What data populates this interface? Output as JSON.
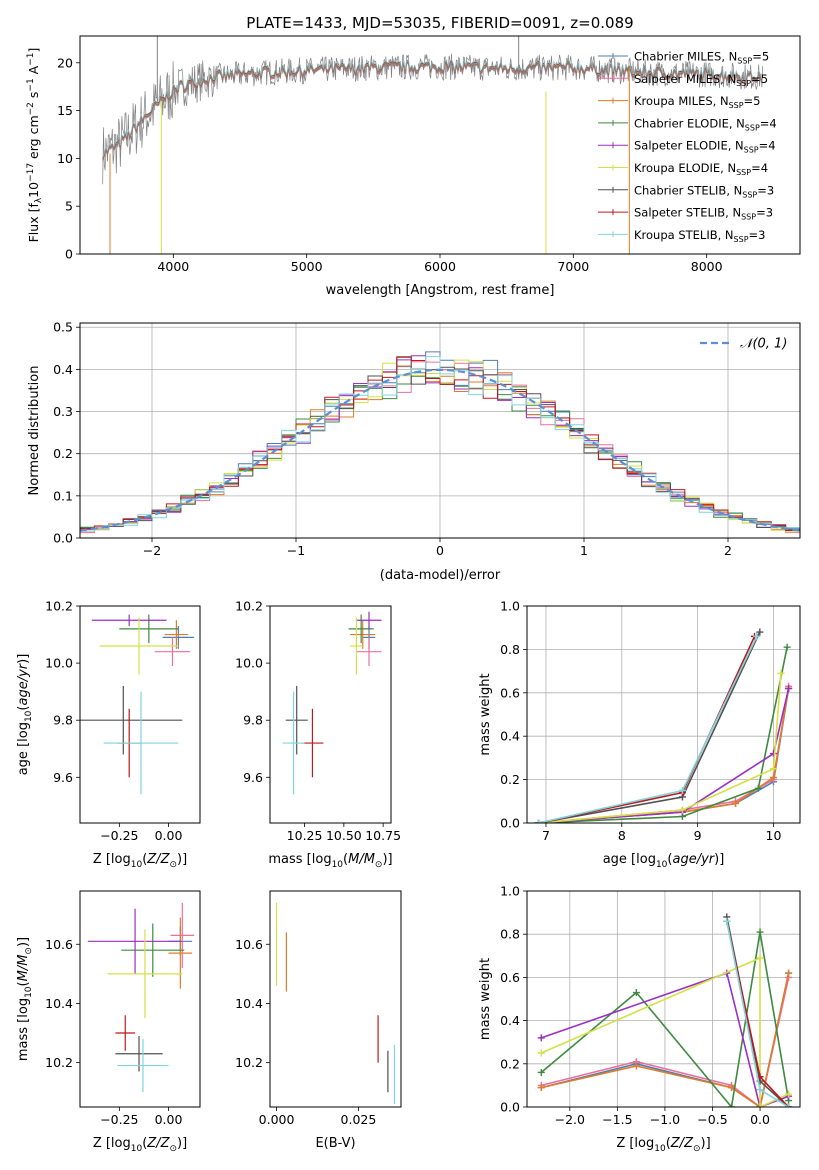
{
  "figure": {
    "title": "PLATE=1433, MJD=53035, FIBERID=0091, z=0.089"
  },
  "series_meta": [
    {
      "name": "Chabrier MILES, N$_{SSP}$=5",
      "label_main": "Chabrier MILES, N",
      "label_sub": "SSP",
      "label_end": "=5",
      "color": "#4d7fb3"
    },
    {
      "name": "Salpeter MILES, N$_{SSP}$=5",
      "label_main": "Salpeter MILES, N",
      "label_sub": "SSP",
      "label_end": "=5",
      "color": "#ec6f9c"
    },
    {
      "name": "Kroupa MILES, N$_{SSP}$=5",
      "label_main": "Kroupa MILES, N",
      "label_sub": "SSP",
      "label_end": "=5",
      "color": "#e07b2a"
    },
    {
      "name": "Chabrier ELODIE, N$_{SSP}$=4",
      "label_main": "Chabrier ELODIE, N",
      "label_sub": "SSP",
      "label_end": "=4",
      "color": "#3f8a3f"
    },
    {
      "name": "Salpeter ELODIE, N$_{SSP}$=4",
      "label_main": "Salpeter ELODIE, N",
      "label_sub": "SSP",
      "label_end": "=4",
      "color": "#9b30c0"
    },
    {
      "name": "Kroupa ELODIE, N$_{SSP}$=4",
      "label_main": "Kroupa ELODIE, N",
      "label_sub": "SSP",
      "label_end": "=4",
      "color": "#d4e045"
    },
    {
      "name": "Chabrier STELIB, N$_{SSP}$=3",
      "label_main": "Chabrier STELIB, N",
      "label_sub": "SSP",
      "label_end": "=3",
      "color": "#505050"
    },
    {
      "name": "Salpeter STELIB, N$_{SSP}$=3",
      "label_main": "Salpeter STELIB, N",
      "label_sub": "SSP",
      "label_end": "=3",
      "color": "#c0181c"
    },
    {
      "name": "Kroupa STELIB, N$_{SSP}$=3",
      "label_main": "Kroupa STELIB, N",
      "label_sub": "SSP",
      "label_end": "=3",
      "color": "#7fd4dd"
    }
  ],
  "chart_data": [
    {
      "id": "spectrum",
      "type": "line",
      "xlabel": "wavelength [Angstrom, rest frame]",
      "ylabel": "Flux [f$_\\lambda$10$^{-17}$ erg cm$^{-2}$ s$^{-1}$ A$^{-1}$]",
      "ylabel_parts": {
        "a": "Flux [f",
        "b": "λ",
        "c": "10",
        "d": "−17",
        "e": " erg cm",
        "f": "−2",
        "g": " s",
        "h": "−1",
        "i": " A",
        "j": "−1",
        "k": "]"
      },
      "xlim": [
        3300,
        8700
      ],
      "ylim": [
        0,
        22.8
      ],
      "xticks": [
        4000,
        5000,
        6000,
        7000,
        8000
      ],
      "yticks": [
        0,
        5,
        10,
        15,
        20
      ],
      "legend": "right",
      "approx_continuum": {
        "x": [
          3470,
          3600,
          3800,
          3950,
          4050,
          4300,
          4700,
          5000,
          5500,
          6000,
          6500,
          7000,
          7500,
          8000,
          8400
        ],
        "y": [
          10.5,
          11.5,
          14.5,
          16.5,
          17.5,
          18.5,
          19.0,
          19.2,
          19.5,
          19.6,
          19.4,
          19.5,
          19.0,
          18.8,
          18.5
        ]
      }
    },
    {
      "id": "residual-hist",
      "type": "line",
      "xlabel": "(data-model)/error",
      "ylabel": "Normed distribution",
      "xlim": [
        -2.5,
        2.5
      ],
      "ylim": [
        0,
        0.51
      ],
      "xticks": [
        -2,
        -1,
        0,
        1,
        2
      ],
      "yticks": [
        0.0,
        0.1,
        0.2,
        0.3,
        0.4,
        0.5
      ],
      "legend": "top-right",
      "gaussian_label": "𝒩(0, 1)",
      "gaussian_color": "#5b8fd6",
      "bin_width": 0.1
    },
    {
      "id": "age-vs-Z",
      "type": "scatter",
      "xlabel": "Z [log$_{10}$(Z/Z$_\\odot$)]",
      "ylabel": "age  [log$_{10}$(age/yr)]",
      "xlim": [
        -0.45,
        0.16
      ],
      "ylim": [
        9.44,
        10.2
      ],
      "xticks": [
        -0.25,
        0.0
      ],
      "yticks": [
        9.6,
        9.8,
        10.0,
        10.2
      ],
      "points": [
        {
          "series": 0,
          "x": 0.05,
          "y": 10.09,
          "xerr": 0.08,
          "yerr": 0.04
        },
        {
          "series": 1,
          "x": 0.02,
          "y": 10.04,
          "xerr": 0.09,
          "yerr": 0.05
        },
        {
          "series": 2,
          "x": 0.04,
          "y": 10.1,
          "xerr": 0.06,
          "yerr": 0.05
        },
        {
          "series": 3,
          "x": -0.1,
          "y": 10.12,
          "xerr": 0.15,
          "yerr": 0.05
        },
        {
          "series": 4,
          "x": -0.2,
          "y": 10.15,
          "xerr": 0.19,
          "yerr": 0.02
        },
        {
          "series": 5,
          "x": -0.15,
          "y": 10.06,
          "xerr": 0.2,
          "yerr": 0.1
        },
        {
          "series": 6,
          "x": -0.23,
          "y": 9.8,
          "xerr": 0.3,
          "yerr": 0.12
        },
        {
          "series": 7,
          "x": -0.2,
          "y": 9.72,
          "xerr": 0.06,
          "yerr": 0.12
        },
        {
          "series": 8,
          "x": -0.14,
          "y": 9.72,
          "xerr": 0.19,
          "yerr": 0.18
        }
      ]
    },
    {
      "id": "age-vs-mass",
      "type": "scatter",
      "xlabel": "mass [log$_{10}$(M/M$_\\odot$)]",
      "ylabel": "",
      "xlim": [
        10.03,
        10.8
      ],
      "ylim": [
        9.44,
        10.2
      ],
      "xticks": [
        10.25,
        10.5,
        10.75
      ],
      "yticks": [
        9.6,
        9.8,
        10.0,
        10.2
      ],
      "points": [
        {
          "series": 0,
          "x": 10.66,
          "y": 10.09,
          "xerr": 0.04,
          "yerr": 0.04
        },
        {
          "series": 1,
          "x": 10.66,
          "y": 10.04,
          "xerr": 0.08,
          "yerr": 0.05
        },
        {
          "series": 2,
          "x": 10.62,
          "y": 10.1,
          "xerr": 0.08,
          "yerr": 0.05
        },
        {
          "series": 3,
          "x": 10.61,
          "y": 10.12,
          "xerr": 0.08,
          "yerr": 0.05
        },
        {
          "series": 4,
          "x": 10.66,
          "y": 10.15,
          "xerr": 0.08,
          "yerr": 0.03
        },
        {
          "series": 5,
          "x": 10.58,
          "y": 10.06,
          "xerr": 0.04,
          "yerr": 0.1
        },
        {
          "series": 6,
          "x": 10.2,
          "y": 9.8,
          "xerr": 0.07,
          "yerr": 0.12
        },
        {
          "series": 7,
          "x": 10.3,
          "y": 9.72,
          "xerr": 0.07,
          "yerr": 0.12
        },
        {
          "series": 8,
          "x": 10.18,
          "y": 9.72,
          "xerr": 0.07,
          "yerr": 0.18
        }
      ]
    },
    {
      "id": "massweight-vs-age",
      "type": "line",
      "xlabel": "age  [log$_{10}$(age/yr)]",
      "ylabel": "mass weight",
      "xlim": [
        6.75,
        10.35
      ],
      "ylim": [
        0,
        1.0
      ],
      "xticks": [
        7,
        8,
        9,
        10
      ],
      "yticks": [
        0.0,
        0.2,
        0.4,
        0.6,
        0.8,
        1.0
      ],
      "series": [
        {
          "series": 0,
          "x": [
            6.9,
            8.8,
            9.5,
            10.0,
            10.2
          ],
          "y": [
            0.0,
            0.05,
            0.09,
            0.19,
            0.62
          ]
        },
        {
          "series": 1,
          "x": [
            6.9,
            8.8,
            9.5,
            10.0,
            10.2
          ],
          "y": [
            0.0,
            0.06,
            0.1,
            0.2,
            0.63
          ]
        },
        {
          "series": 2,
          "x": [
            6.9,
            8.8,
            9.5,
            10.0,
            10.2
          ],
          "y": [
            0.0,
            0.05,
            0.09,
            0.21,
            0.62
          ]
        },
        {
          "series": 3,
          "x": [
            6.9,
            8.8,
            9.8,
            10.18
          ],
          "y": [
            0.0,
            0.03,
            0.16,
            0.81
          ]
        },
        {
          "series": 4,
          "x": [
            6.9,
            8.8,
            10.0,
            10.2
          ],
          "y": [
            0.0,
            0.05,
            0.32,
            0.62
          ]
        },
        {
          "series": 5,
          "x": [
            6.9,
            8.8,
            10.0,
            10.1
          ],
          "y": [
            0.0,
            0.06,
            0.25,
            0.69
          ]
        },
        {
          "series": 6,
          "x": [
            6.9,
            8.8,
            9.82
          ],
          "y": [
            0.0,
            0.12,
            0.88
          ]
        },
        {
          "series": 7,
          "x": [
            6.9,
            8.8,
            9.75
          ],
          "y": [
            0.0,
            0.14,
            0.86
          ]
        },
        {
          "series": 8,
          "x": [
            6.9,
            8.8,
            9.78
          ],
          "y": [
            0.0,
            0.15,
            0.86
          ]
        }
      ]
    },
    {
      "id": "mass-vs-Z",
      "type": "scatter",
      "xlabel": "Z [log$_{10}$(Z/Z$_\\odot$)]",
      "ylabel": "mass [log$_{10}$(M/M$_\\odot$)]",
      "xlim": [
        -0.45,
        0.16
      ],
      "ylim": [
        10.05,
        10.78
      ],
      "xticks": [
        -0.25,
        0.0
      ],
      "yticks": [
        10.2,
        10.4,
        10.6
      ],
      "points": [
        {
          "series": 0,
          "x": 0.06,
          "y": 10.61,
          "xerr": 0.06,
          "yerr": 0.05
        },
        {
          "series": 1,
          "x": 0.07,
          "y": 10.63,
          "xerr": 0.06,
          "yerr": 0.11
        },
        {
          "series": 2,
          "x": 0.06,
          "y": 10.57,
          "xerr": 0.06,
          "yerr": 0.12
        },
        {
          "series": 3,
          "x": -0.08,
          "y": 10.58,
          "xerr": 0.16,
          "yerr": 0.09
        },
        {
          "series": 4,
          "x": -0.17,
          "y": 10.61,
          "xerr": 0.24,
          "yerr": 0.11
        },
        {
          "series": 5,
          "x": -0.12,
          "y": 10.5,
          "xerr": 0.19,
          "yerr": 0.15
        },
        {
          "series": 6,
          "x": -0.15,
          "y": 10.23,
          "xerr": 0.12,
          "yerr": 0.06
        },
        {
          "series": 7,
          "x": -0.22,
          "y": 10.3,
          "xerr": 0.05,
          "yerr": 0.06
        },
        {
          "series": 8,
          "x": -0.13,
          "y": 10.19,
          "xerr": 0.13,
          "yerr": 0.09
        }
      ]
    },
    {
      "id": "mass-vs-ebv",
      "type": "scatter",
      "xlabel": "E(B-V)",
      "ylabel": "",
      "xlim": [
        -0.002,
        0.038
      ],
      "ylim": [
        10.05,
        10.78
      ],
      "xticks": [
        0.0,
        0.025
      ],
      "yticks": [
        10.2,
        10.4,
        10.6
      ],
      "points": [
        {
          "series": 5,
          "x": 0.0,
          "y": 10.6,
          "xerr": 0,
          "yerr": 0.14
        },
        {
          "series": 2,
          "x": 0.003,
          "y": 10.54,
          "xerr": 0,
          "yerr": 0.1
        },
        {
          "series": 7,
          "x": 0.031,
          "y": 10.28,
          "xerr": 0,
          "yerr": 0.08
        },
        {
          "series": 6,
          "x": 0.034,
          "y": 10.17,
          "xerr": 0,
          "yerr": 0.07
        },
        {
          "series": 8,
          "x": 0.036,
          "y": 10.16,
          "xerr": 0,
          "yerr": 0.1
        }
      ]
    },
    {
      "id": "massweight-vs-Z",
      "type": "line",
      "xlabel": "Z [log$_{10}$(Z/Z$_\\odot$)]",
      "ylabel": "mass weight",
      "xlim": [
        -2.45,
        0.42
      ],
      "ylim": [
        0,
        1.0
      ],
      "xticks": [
        -2.0,
        -1.5,
        -1.0,
        -0.5,
        0.0
      ],
      "yticks": [
        0.0,
        0.2,
        0.4,
        0.6,
        0.8,
        1.0
      ],
      "series": [
        {
          "series": 0,
          "x": [
            -2.3,
            -1.3,
            -0.3,
            0.0,
            0.3
          ],
          "y": [
            0.09,
            0.2,
            0.09,
            0.0,
            0.62
          ]
        },
        {
          "series": 1,
          "x": [
            -2.3,
            -1.3,
            -0.3,
            0.0,
            0.3
          ],
          "y": [
            0.1,
            0.21,
            0.1,
            0.0,
            0.6
          ]
        },
        {
          "series": 2,
          "x": [
            -2.3,
            -1.3,
            -0.3,
            0.0,
            0.3
          ],
          "y": [
            0.09,
            0.19,
            0.09,
            0.0,
            0.62
          ]
        },
        {
          "series": 3,
          "x": [
            -2.3,
            -1.3,
            -0.3,
            0.0,
            0.3
          ],
          "y": [
            0.16,
            0.53,
            0.0,
            0.81,
            0.03
          ]
        },
        {
          "series": 4,
          "x": [
            -2.3,
            -0.35,
            0.0,
            0.3
          ],
          "y": [
            0.32,
            0.62,
            0.0,
            0.05
          ]
        },
        {
          "series": 5,
          "x": [
            -2.3,
            0.0,
            0.0,
            0.3
          ],
          "y": [
            0.25,
            0.69,
            0.0,
            0.06
          ]
        },
        {
          "series": 6,
          "x": [
            -0.35,
            0.0,
            0.3
          ],
          "y": [
            0.88,
            0.12,
            0.0
          ]
        },
        {
          "series": 7,
          "x": [
            -0.35,
            0.0,
            0.3
          ],
          "y": [
            0.86,
            0.14,
            0.0
          ]
        },
        {
          "series": 8,
          "x": [
            -0.35,
            0.0,
            0.3
          ],
          "y": [
            0.86,
            0.08,
            0.0
          ]
        }
      ]
    }
  ]
}
